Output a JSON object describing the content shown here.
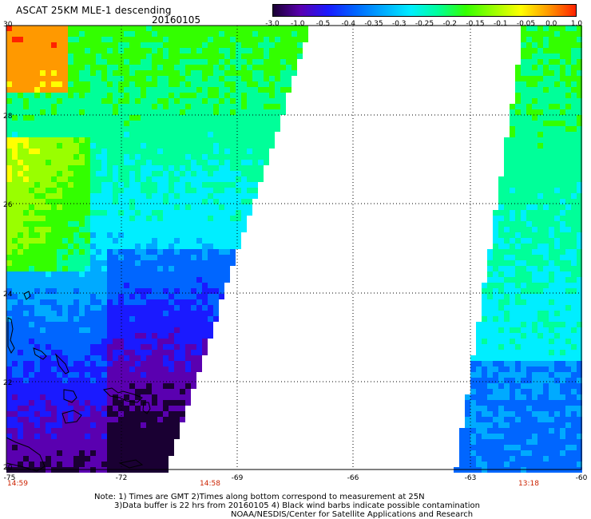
{
  "header": {
    "title": "ASCAT 25KM MLE-1 descending",
    "date": "20160105"
  },
  "colorbar": {
    "labels": [
      "-3.0",
      "-1.0",
      "-0.5",
      "-0.4",
      "-0.35",
      "-0.3",
      "-0.25",
      "-0.2",
      "-0.15",
      "-0.1",
      "-0.05",
      "0.0",
      "1.0"
    ],
    "colors": [
      "#1a0033",
      "#5a00b0",
      "#1a1aff",
      "#0066ff",
      "#00aaff",
      "#00eeff",
      "#00ff99",
      "#33ff00",
      "#99ff00",
      "#ffff00",
      "#ff9900",
      "#ff2200"
    ]
  },
  "map": {
    "lat_labels": [
      "30",
      "28",
      "26",
      "24",
      "22",
      "20"
    ],
    "lon_labels": [
      "-75",
      "-72",
      "-69",
      "-66",
      "-63",
      "-60"
    ],
    "time_labels": [
      "14:59",
      "14:58",
      "13:18"
    ],
    "lat_range": [
      20,
      30
    ],
    "lon_range": [
      -75,
      -60
    ]
  },
  "notes": {
    "line1": "Note: 1) Times are GMT 2)Times along bottom correspond to measurement at 25N",
    "line2": "3)Data buffer is 22 hrs from 20160105 4) Black wind barbs indicate possible contamination",
    "line3": "NOAA/NESDIS/Center for Satellite Applications and Research"
  }
}
